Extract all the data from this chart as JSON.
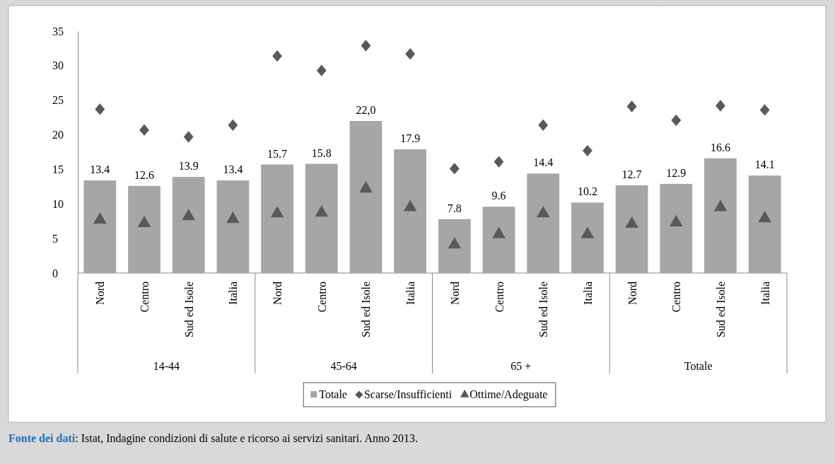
{
  "chart_data": {
    "type": "bar",
    "categories": [
      "Nord",
      "Centro",
      "Sud ed Isole",
      "Italia",
      "Nord",
      "Centro",
      "Sud ed Isole",
      "Italia",
      "Nord",
      "Centro",
      "Sud ed Isole",
      "Italia",
      "Nord",
      "Centro",
      "Sud ed Isole",
      "Italia"
    ],
    "series": [
      {
        "name": "Totale",
        "color": "#a6a6a6",
        "values": [
          13.4,
          12.6,
          13.9,
          13.4,
          15.7,
          15.8,
          22.0,
          17.9,
          7.8,
          9.6,
          14.4,
          10.2,
          12.7,
          12.9,
          16.6,
          14.1
        ],
        "value_labels": [
          "13.4",
          "12.6",
          "13.9",
          "13.4",
          "15.7",
          "15.8",
          "22,0",
          "17.9",
          "7.8",
          "9.6",
          "14.4",
          "10.2",
          "12.7",
          "12.9",
          "16.6",
          "14.1"
        ]
      },
      {
        "name": "Scarse/Insufficienti",
        "type": "scatter",
        "marker": "diamond",
        "color": "#595959",
        "values": [
          23.7,
          20.7,
          19.7,
          21.4,
          31.4,
          29.3,
          32.9,
          31.7,
          15.1,
          16.1,
          21.4,
          17.7,
          24.1,
          22.1,
          24.2,
          23.6
        ]
      },
      {
        "name": "Ottime/Adeguate",
        "type": "scatter",
        "marker": "triangle",
        "color": "#595959",
        "values": [
          7.7,
          7.2,
          8.2,
          7.8,
          8.6,
          8.7,
          12.2,
          9.5,
          4.1,
          5.6,
          8.6,
          5.6,
          7.1,
          7.3,
          9.5,
          7.9
        ]
      }
    ],
    "ylim": [
      0,
      35
    ],
    "yticks": [
      0,
      5,
      10,
      15,
      20,
      25,
      30,
      35
    ],
    "grid": false,
    "legend": "bottom",
    "annotations": [
      {
        "text": "14-44"
      },
      {
        "text": "45-64"
      },
      {
        "text": "65 +"
      },
      {
        "text": "Totale"
      },
      "Fonte dei dati: Istat, Indagine condizioni di salute e ricorso ai servizi sanitari. Anno 2013."
    ]
  }
}
